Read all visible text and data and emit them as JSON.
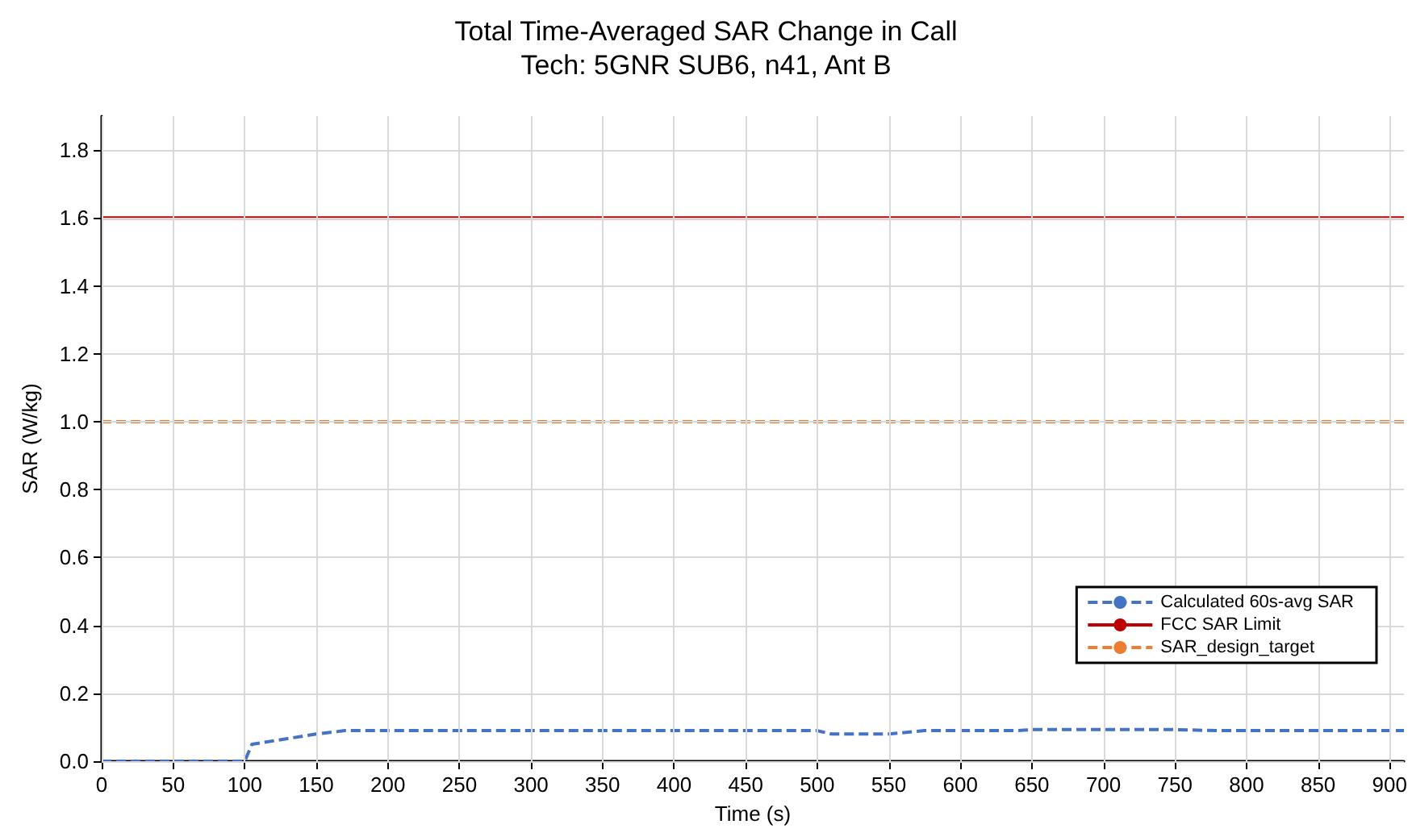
{
  "chart_data": {
    "type": "line",
    "title": "Total Time-Averaged SAR Change in Call",
    "subtitle": "Tech: 5GNR SUB6, n41, Ant B",
    "xlabel": "Time (s)",
    "ylabel": "SAR (W/kg)",
    "x": [
      0,
      50,
      100,
      105,
      150,
      170,
      250,
      350,
      450,
      500,
      510,
      550,
      575,
      640,
      650,
      750,
      780,
      850,
      910
    ],
    "series": [
      {
        "name": "Calculated 60s-avg SAR",
        "color": "#4472c4",
        "line_style": "dashed",
        "values": [
          0,
          0,
          0,
          0.05,
          0.08,
          0.09,
          0.09,
          0.09,
          0.09,
          0.09,
          0.08,
          0.08,
          0.09,
          0.09,
          0.093,
          0.093,
          0.09,
          0.09,
          0.09
        ]
      }
    ],
    "ref_lines": [
      {
        "axis": "y",
        "value": 1.6,
        "label": "FCC SAR Limit",
        "color": "#c00000",
        "line_style": "solid"
      },
      {
        "axis": "y",
        "value": 1.0,
        "label": "SAR_design_target",
        "color": "#ed7d31",
        "line_style": "dashed"
      }
    ],
    "xlim": [
      0,
      910
    ],
    "xticks": [
      0,
      50,
      100,
      150,
      200,
      250,
      300,
      350,
      400,
      450,
      500,
      550,
      600,
      650,
      700,
      750,
      800,
      850,
      900
    ],
    "ylim": [
      0,
      1.9
    ],
    "yticks": [
      {
        "value": 0,
        "label": "0.0"
      },
      {
        "value": 0.2,
        "label": "0.2"
      },
      {
        "value": 0.4,
        "label": "0.4"
      },
      {
        "value": 0.6,
        "label": "0.6"
      },
      {
        "value": 0.8,
        "label": "0.8"
      },
      {
        "value": 1.0,
        "label": "1.0"
      },
      {
        "value": 1.2,
        "label": "1.2"
      },
      {
        "value": 1.4,
        "label": "1.4"
      },
      {
        "value": 1.6,
        "label": "1.6"
      },
      {
        "value": 1.8,
        "label": "1.8"
      }
    ],
    "grid": true,
    "legend": "bottom right",
    "marker": "none"
  }
}
